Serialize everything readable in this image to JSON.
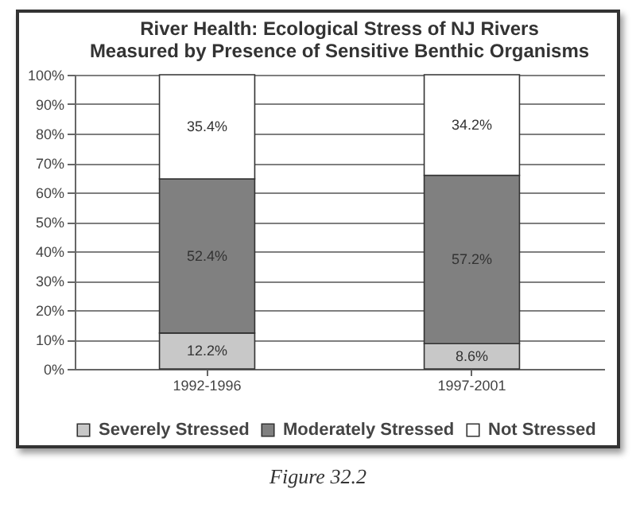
{
  "chart_data": {
    "type": "bar",
    "stacked": true,
    "title": "River Health: Ecological Stress of NJ Rivers Measured by Presence of Sensitive Benthic Organisms",
    "categories": [
      "1992-1996",
      "1997-2001"
    ],
    "series": [
      {
        "name": "Severely Stressed",
        "color": "#c8c8c8",
        "values": [
          12.2,
          8.6
        ],
        "value_labels": [
          "12.2%",
          "8.6%"
        ]
      },
      {
        "name": "Moderately Stressed",
        "color": "#808080",
        "values": [
          52.4,
          57.2
        ],
        "value_labels": [
          "52.4%",
          "57.2%"
        ]
      },
      {
        "name": "Not Stressed",
        "color": "#ffffff",
        "values": [
          35.4,
          34.2
        ],
        "value_labels": [
          "35.4%",
          "34.2%"
        ]
      }
    ],
    "ylim": [
      0,
      100
    ],
    "yticks": [
      {
        "value": 0,
        "label": "0%"
      },
      {
        "value": 10,
        "label": "10%"
      },
      {
        "value": 20,
        "label": "20%"
      },
      {
        "value": 30,
        "label": "30%"
      },
      {
        "value": 40,
        "label": "40%"
      },
      {
        "value": 50,
        "label": "50%"
      },
      {
        "value": 60,
        "label": "60%"
      },
      {
        "value": 70,
        "label": "70%"
      },
      {
        "value": 80,
        "label": "80%"
      },
      {
        "value": 90,
        "label": "90%"
      },
      {
        "value": 100,
        "label": "100%"
      }
    ],
    "grid": "y",
    "legend": "bottom",
    "annotations": [
      "Figure 32.2"
    ]
  }
}
